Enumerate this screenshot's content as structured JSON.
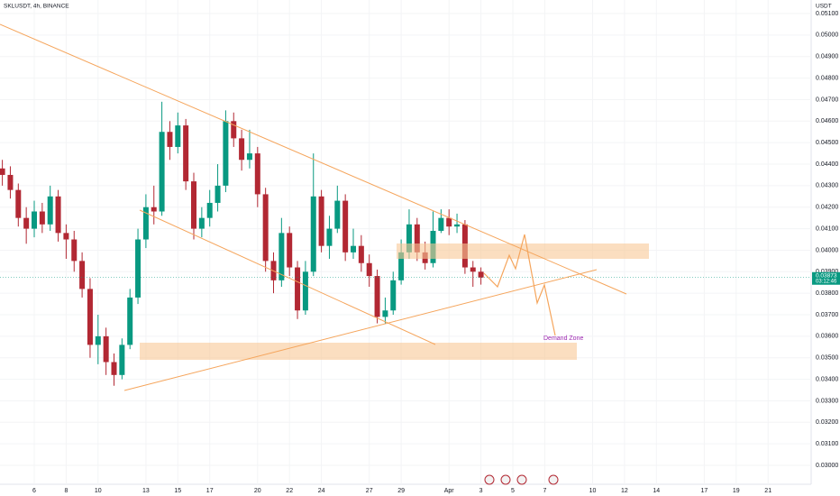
{
  "chart_data": {
    "type": "candlestick",
    "title": "SKLUSDT, 4h, BINANCE",
    "y_axis_label": "USDT",
    "up_color": "#089981",
    "down_color": "#b22833",
    "x": [
      4,
      4.5,
      5,
      5.5,
      6,
      6.5,
      7,
      7.5,
      8,
      8.5,
      9,
      9.5,
      10,
      10.5,
      11,
      11.5,
      12,
      12.5,
      13,
      13.5,
      14,
      14.5,
      15,
      15.5,
      16,
      16.5,
      17,
      17.5,
      18,
      18.5,
      19,
      19.5,
      20,
      20.5,
      21,
      21.5,
      22,
      22.5,
      23,
      23.5,
      24,
      24.5,
      25,
      25.5,
      26,
      26.5,
      27,
      27.5,
      28,
      28.5,
      29,
      29.5,
      30,
      30.5,
      31,
      31.5,
      32,
      32.5,
      33,
      33.5,
      34
    ],
    "open": [
      0.0438,
      0.0435,
      0.0428,
      0.0415,
      0.041,
      0.0418,
      0.0412,
      0.0425,
      0.0408,
      0.0405,
      0.0395,
      0.0382,
      0.0356,
      0.036,
      0.0348,
      0.0342,
      0.0356,
      0.0378,
      0.0405,
      0.042,
      0.0418,
      0.0455,
      0.0448,
      0.0458,
      0.0432,
      0.041,
      0.0415,
      0.0422,
      0.043,
      0.046,
      0.0452,
      0.0442,
      0.0445,
      0.0426,
      0.0395,
      0.0386,
      0.0408,
      0.0392,
      0.0372,
      0.039,
      0.0425,
      0.0402,
      0.041,
      0.0423,
      0.0399,
      0.0402,
      0.0394,
      0.0388,
      0.0369,
      0.0372,
      0.0386,
      0.0399,
      0.0412,
      0.0399,
      0.0394,
      0.0409,
      0.0415,
      0.0411,
      0.0412,
      0.0392,
      0.039
    ],
    "high": [
      0.0442,
      0.0439,
      0.0431,
      0.042,
      0.0423,
      0.0422,
      0.043,
      0.0428,
      0.0412,
      0.0409,
      0.0399,
      0.0387,
      0.037,
      0.0364,
      0.0352,
      0.0359,
      0.0382,
      0.041,
      0.0426,
      0.043,
      0.0469,
      0.046,
      0.0464,
      0.0461,
      0.0436,
      0.042,
      0.0428,
      0.044,
      0.0465,
      0.0464,
      0.0456,
      0.0456,
      0.0448,
      0.0429,
      0.0399,
      0.0415,
      0.0411,
      0.0395,
      0.0395,
      0.0445,
      0.0428,
      0.0416,
      0.043,
      0.0426,
      0.041,
      0.0407,
      0.0398,
      0.0391,
      0.0378,
      0.039,
      0.0405,
      0.0419,
      0.0415,
      0.0404,
      0.0418,
      0.0419,
      0.0419,
      0.0417,
      0.0414,
      0.0395,
      0.0392
    ],
    "low": [
      0.043,
      0.0424,
      0.0411,
      0.0403,
      0.0406,
      0.0408,
      0.0409,
      0.0404,
      0.0396,
      0.039,
      0.0378,
      0.035,
      0.0347,
      0.0342,
      0.0337,
      0.034,
      0.0354,
      0.0375,
      0.0401,
      0.0412,
      0.0416,
      0.0442,
      0.0445,
      0.0428,
      0.0405,
      0.0406,
      0.0411,
      0.0418,
      0.0427,
      0.0448,
      0.0437,
      0.0438,
      0.042,
      0.039,
      0.038,
      0.0383,
      0.0388,
      0.0368,
      0.037,
      0.0388,
      0.0399,
      0.0396,
      0.0408,
      0.0395,
      0.0396,
      0.039,
      0.0383,
      0.0366,
      0.0366,
      0.037,
      0.0384,
      0.0396,
      0.0395,
      0.0391,
      0.0392,
      0.0408,
      0.0407,
      0.0408,
      0.0389,
      0.0383,
      0.0384
    ],
    "close": [
      0.0435,
      0.0428,
      0.0415,
      0.041,
      0.0418,
      0.0412,
      0.0425,
      0.0408,
      0.0405,
      0.0395,
      0.0382,
      0.0356,
      0.036,
      0.0348,
      0.0342,
      0.0356,
      0.0378,
      0.0405,
      0.042,
      0.0418,
      0.0455,
      0.0448,
      0.0458,
      0.0432,
      0.041,
      0.0415,
      0.0422,
      0.043,
      0.046,
      0.0452,
      0.0442,
      0.0445,
      0.0426,
      0.0395,
      0.0386,
      0.0408,
      0.0392,
      0.0372,
      0.039,
      0.0425,
      0.0402,
      0.041,
      0.0423,
      0.0399,
      0.0402,
      0.0394,
      0.0388,
      0.0369,
      0.0372,
      0.0386,
      0.0399,
      0.0412,
      0.0399,
      0.0394,
      0.0409,
      0.0415,
      0.0411,
      0.0412,
      0.0392,
      0.039,
      0.03873
    ],
    "xlim": [
      3.853,
      54.7
    ],
    "xticks": [
      6,
      8,
      10,
      13,
      15,
      17,
      20,
      22,
      24,
      27,
      29,
      {
        "value": 32,
        "label": "Apr"
      },
      {
        "value": 34,
        "label": "3"
      },
      {
        "value": 36,
        "label": "5"
      },
      {
        "value": 38,
        "label": "7"
      },
      {
        "value": 41,
        "label": "10"
      },
      {
        "value": 43,
        "label": "12"
      },
      {
        "value": 45,
        "label": "14"
      },
      {
        "value": 48,
        "label": "17"
      },
      {
        "value": 50,
        "label": "19"
      },
      {
        "value": 52,
        "label": "21"
      }
    ],
    "ylim": [
      0.02912,
      0.05163
    ],
    "yticks": [
      {
        "value": 0.051,
        "label": "0.05100"
      },
      {
        "value": 0.05,
        "label": "0.05000"
      },
      {
        "value": 0.049,
        "label": "0.04900"
      },
      {
        "value": 0.048,
        "label": "0.04800"
      },
      {
        "value": 0.047,
        "label": "0.04700"
      },
      {
        "value": 0.046,
        "label": "0.04600"
      },
      {
        "value": 0.045,
        "label": "0.04500"
      },
      {
        "value": 0.044,
        "label": "0.04400"
      },
      {
        "value": 0.043,
        "label": "0.04300"
      },
      {
        "value": 0.042,
        "label": "0.04200"
      },
      {
        "value": 0.041,
        "label": "0.04100"
      },
      {
        "value": 0.04,
        "label": "0.04000"
      },
      {
        "value": 0.039,
        "label": "0.03900"
      },
      {
        "value": 0.038,
        "label": "0.03800"
      },
      {
        "value": 0.037,
        "label": "0.03700"
      },
      {
        "value": 0.036,
        "label": "0.03600"
      },
      {
        "value": 0.035,
        "label": "0.03500"
      },
      {
        "value": 0.034,
        "label": "0.03400"
      },
      {
        "value": 0.033,
        "label": "0.03300"
      },
      {
        "value": 0.032,
        "label": "0.03200"
      },
      {
        "value": 0.031,
        "label": "0.03100"
      },
      {
        "value": 0.03,
        "label": "0.03000"
      }
    ],
    "last_price": {
      "value": 0.03873,
      "label": "0.03873"
    },
    "countdown": "03:12:46",
    "annotation": "Demand Zone"
  }
}
